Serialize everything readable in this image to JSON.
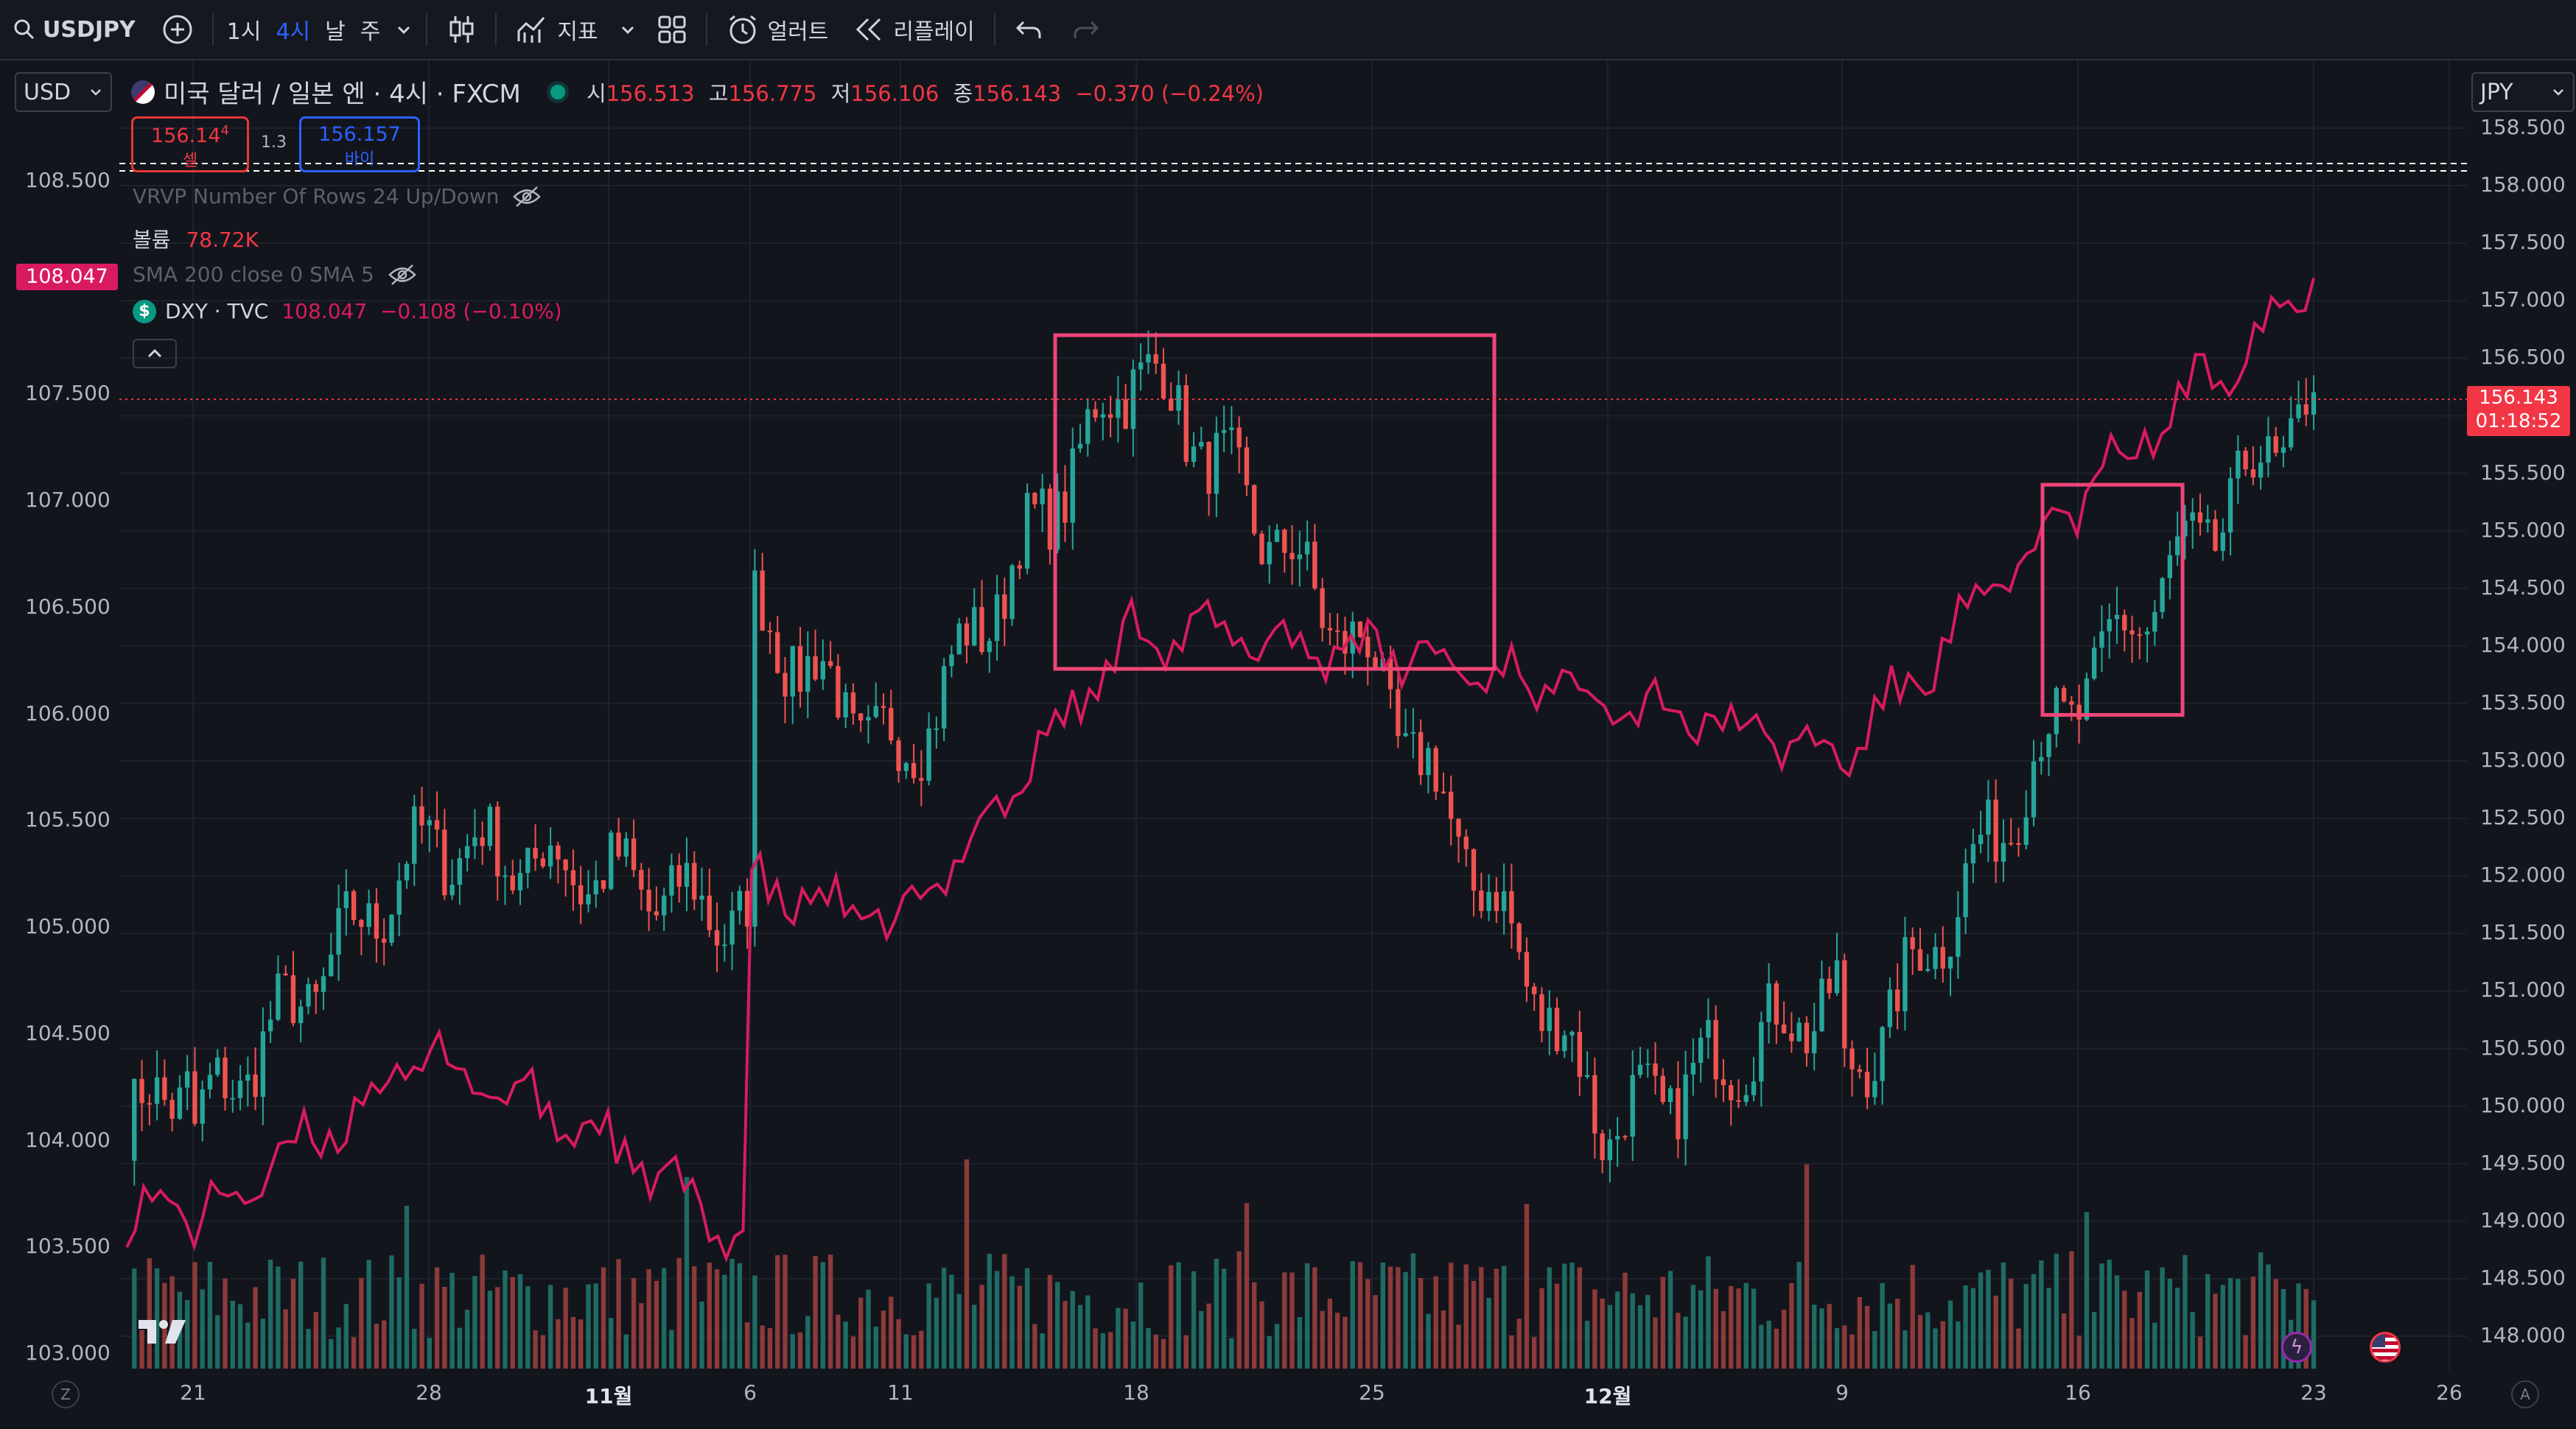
{
  "toolbar": {
    "symbol": "USDJPY",
    "intervals": [
      "1시",
      "4시",
      "날",
      "주"
    ],
    "active_interval": "4시",
    "indicators_label": "지표",
    "alert_label": "얼러트",
    "replay_label": "리플레이"
  },
  "legend": {
    "title": "미국 달러 / 일본 엔 · 4시 · FXCM",
    "o_label": "시",
    "o": "156.513",
    "h_label": "고",
    "h": "156.775",
    "l_label": "저",
    "l": "156.106",
    "c_label": "종",
    "c": "156.143",
    "change": "−0.370 (−0.24%)",
    "sell_price": "156.14",
    "sell_sup": "4",
    "sell_label": "셀",
    "spread": "1.3",
    "buy_price": "156.157",
    "buy_label": "바이",
    "vrvp": "VRVP Number Of Rows 24 Up/Down",
    "volume_label": "볼륨",
    "volume_value": "78.72K",
    "sma": "SMA 200 close 0 SMA 5",
    "dxy_icon": "$",
    "dxy_name": "DXY · TVC",
    "dxy_values": "108.047  −0.108 (−0.10%)"
  },
  "left_axis": {
    "currency": "USD",
    "ticks": [
      "108.500",
      "107.500",
      "107.000",
      "106.500",
      "106.000",
      "105.500",
      "105.000",
      "104.500",
      "104.000",
      "103.500",
      "103.000"
    ],
    "badge": "108.047"
  },
  "right_axis": {
    "currency": "JPY",
    "ticks": [
      "158.500",
      "158.000",
      "157.500",
      "157.000",
      "156.500",
      "156.000",
      "155.500",
      "155.000",
      "154.500",
      "154.000",
      "153.500",
      "153.000",
      "152.500",
      "152.000",
      "151.500",
      "151.000",
      "150.500",
      "150.000",
      "149.500",
      "149.000",
      "148.500",
      "148.000"
    ],
    "price_badge": "156.143",
    "countdown": "01:18:52"
  },
  "time_axis": {
    "ticks": [
      "21",
      "28",
      "11월",
      "6",
      "11",
      "18",
      "25",
      "12월",
      "9",
      "16",
      "23",
      "26"
    ],
    "bold": [
      "11월",
      "12월"
    ],
    "left_btn": "Z",
    "right_btn": "A"
  },
  "colors": {
    "up": "#26a69a",
    "down": "#ef5350",
    "dxy_line": "#d81b60",
    "annotation": "#f0457a",
    "background": "#13151c"
  },
  "chart_data": {
    "type": "candlestick",
    "main_series": {
      "name": "미국 달러 / 일본 엔 · 4시 · FXCM",
      "anchors": [
        [
          "21",
          149.8
        ],
        [
          "28",
          152.3
        ],
        [
          "11월",
          152.0
        ],
        [
          "6",
          151.6
        ],
        [
          "6",
          154.3
        ],
        [
          "11",
          153.0
        ],
        [
          "18",
          156.5
        ],
        [
          "25",
          153.8
        ],
        [
          "12월",
          149.8
        ],
        [
          "9",
          151.0
        ],
        [
          "9",
          150.1
        ],
        [
          "16",
          153.6
        ],
        [
          "23",
          156.14
        ]
      ],
      "last_close": 156.143
    },
    "overlay_series": {
      "name": "DXY · TVC",
      "anchors": [
        [
          "21",
          103.6
        ],
        [
          "28",
          104.4
        ],
        [
          "11월",
          104.0
        ],
        [
          "6",
          103.5
        ],
        [
          "6",
          105.2
        ],
        [
          "11",
          105.0
        ],
        [
          "18",
          106.4
        ],
        [
          "25",
          106.3
        ],
        [
          "12월",
          106.1
        ],
        [
          "9",
          105.8
        ],
        [
          "16",
          107.0
        ],
        [
          "23",
          108.047
        ]
      ],
      "last": 108.047
    },
    "annotations": [
      {
        "type": "rectangle",
        "x_from": "16",
        "x_to": "27",
        "y_from": 153.8,
        "y_to": 156.7
      },
      {
        "type": "rectangle",
        "x_from": "14",
        "x_to": "20",
        "y_from": 153.4,
        "y_to": 155.4
      }
    ],
    "left_range": [
      103.0,
      108.6
    ],
    "right_range": [
      148.0,
      158.6
    ]
  }
}
